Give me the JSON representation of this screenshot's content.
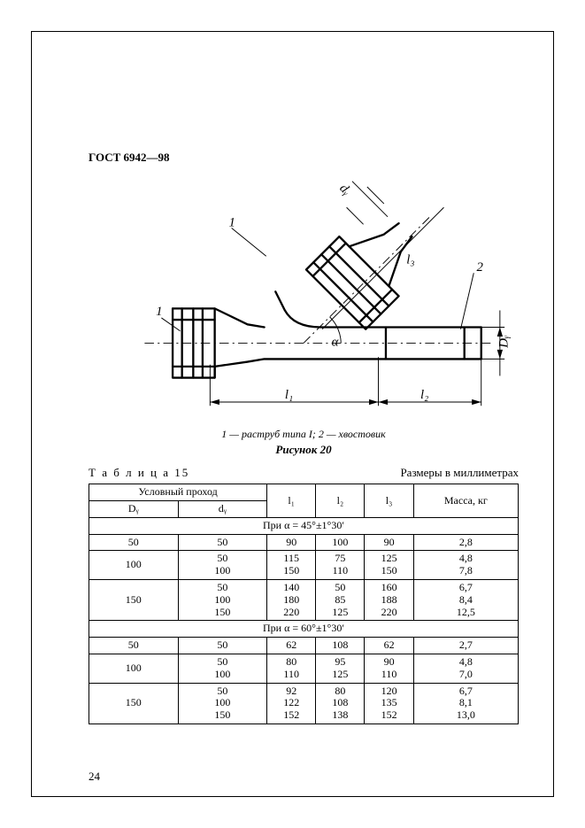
{
  "doc": {
    "standard": "ГОСТ 6942—98",
    "page_number": "24"
  },
  "figure": {
    "legend": "1 — раструб типа I; 2 — хвостовик",
    "caption": "Рисунок 20",
    "labels": {
      "d_y": "dᵧ",
      "D_y": "Dᵧ",
      "l1": "l₁",
      "l2": "l₂",
      "l3": "l₃",
      "alpha": "α",
      "mark1a": "1",
      "mark1b": "1",
      "mark2": "2"
    },
    "stroke_color": "#000000",
    "background": "#ffffff",
    "line_width_main": 2.2,
    "line_width_thin": 0.9
  },
  "table": {
    "label": "Т а б л и ц а  15",
    "units": "Размеры в миллиметрах",
    "headers": {
      "group": "Условный проход",
      "D_y": "Dᵧ",
      "d_y": "dᵧ",
      "l1": "l₁",
      "l2": "l₂",
      "l3": "l₃",
      "mass": "Масса, кг"
    },
    "sections": [
      {
        "title": "При α = 45°±1°30′",
        "rows": [
          {
            "D": "50",
            "d": "50",
            "l1": "90",
            "l2": "100",
            "l3": "90",
            "m": "2,8"
          },
          {
            "D": "100",
            "d": "50\n100",
            "l1": "115\n150",
            "l2": "75\n110",
            "l3": "125\n150",
            "m": "4,8\n7,8"
          },
          {
            "D": "150",
            "d": "50\n100\n150",
            "l1": "140\n180\n220",
            "l2": "50\n85\n125",
            "l3": "160\n188\n220",
            "m": "6,7\n8,4\n12,5"
          }
        ]
      },
      {
        "title": "При α = 60°±1°30′",
        "rows": [
          {
            "D": "50",
            "d": "50",
            "l1": "62",
            "l2": "108",
            "l3": "62",
            "m": "2,7"
          },
          {
            "D": "100",
            "d": "50\n100",
            "l1": "80\n110",
            "l2": "95\n125",
            "l3": "90\n110",
            "m": "4,8\n7,0"
          },
          {
            "D": "150",
            "d": "50\n100\n150",
            "l1": "92\n122\n152",
            "l2": "80\n108\n138",
            "l3": "120\n135\n152",
            "m": "6,7\n8,1\n13,0"
          }
        ]
      }
    ]
  }
}
